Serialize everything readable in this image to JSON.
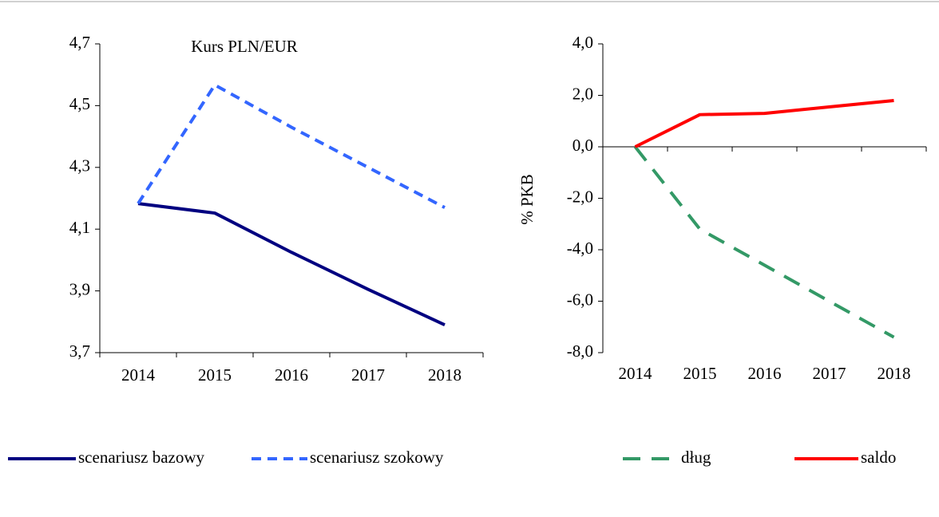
{
  "chart_data": [
    {
      "type": "line",
      "title": "Kurs PLN/EUR",
      "categories": [
        "2014",
        "2015",
        "2016",
        "2017",
        "2018"
      ],
      "series": [
        {
          "name": "scenariusz bazowy",
          "color": "#000080",
          "dash": false,
          "values": [
            4.183,
            4.152,
            4.025,
            3.905,
            3.79
          ]
        },
        {
          "name": "scenariusz szokowy",
          "color": "#3366ff",
          "dash": true,
          "values": [
            4.183,
            4.567,
            4.43,
            4.3,
            4.17
          ]
        }
      ],
      "ylim": [
        3.7,
        4.7
      ],
      "yticks": [
        {
          "value": 3.7,
          "label": "3,7"
        },
        {
          "value": 3.9,
          "label": "3,9"
        },
        {
          "value": 4.1,
          "label": "4,1"
        },
        {
          "value": 4.3,
          "label": "4,3"
        },
        {
          "value": 4.5,
          "label": "4,5"
        },
        {
          "value": 4.7,
          "label": "4,7"
        }
      ],
      "grid": false
    },
    {
      "type": "line",
      "y_label": "% PKB",
      "categories": [
        "2014",
        "2015",
        "2016",
        "2017",
        "2018"
      ],
      "series": [
        {
          "name": "dług",
          "color": "#339966",
          "dash": true,
          "values": [
            0,
            -3.2,
            -4.6,
            -6.0,
            -7.4
          ]
        },
        {
          "name": "saldo",
          "color": "#ff0000",
          "dash": false,
          "values": [
            0,
            1.25,
            1.3,
            1.55,
            1.8
          ]
        }
      ],
      "ylim": [
        -8,
        4
      ],
      "yticks": [
        {
          "value": -8,
          "label": "-8,0"
        },
        {
          "value": -6,
          "label": "-6,0"
        },
        {
          "value": -4,
          "label": "-4,0"
        },
        {
          "value": -2,
          "label": "-2,0"
        },
        {
          "value": 0,
          "label": "0,0"
        },
        {
          "value": 2,
          "label": "2,0"
        },
        {
          "value": 4,
          "label": "4,0"
        }
      ],
      "grid": false
    }
  ]
}
